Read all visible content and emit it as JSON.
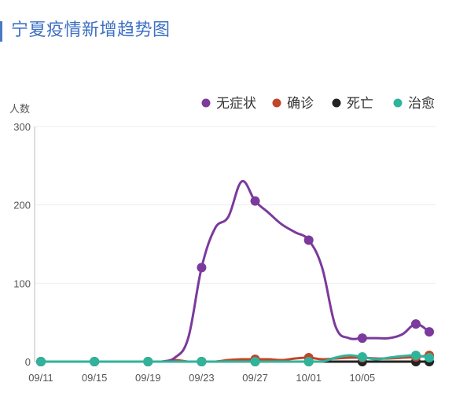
{
  "header": {
    "title": "宁夏疫情新增趋势图"
  },
  "chart_data": {
    "type": "line",
    "title": "宁夏疫情新增趋势图",
    "ylabel": "人数",
    "xlabel": "",
    "ylim": [
      0,
      300
    ],
    "yticks": [
      0,
      100,
      200,
      300
    ],
    "xticks": [
      "09/11",
      "09/15",
      "09/19",
      "09/23",
      "09/27",
      "10/01",
      "10/05"
    ],
    "x_dates": [
      "09/11",
      "09/12",
      "09/13",
      "09/14",
      "09/15",
      "09/16",
      "09/17",
      "09/18",
      "09/19",
      "09/20",
      "09/21",
      "09/22",
      "09/23",
      "09/24",
      "09/25",
      "09/26",
      "09/27",
      "09/28",
      "09/29",
      "09/30",
      "10/01",
      "10/02",
      "10/03",
      "10/04",
      "10/05",
      "10/06",
      "10/07",
      "10/08",
      "10/09",
      "10/10"
    ],
    "grid": true,
    "legend_placement": "top-right",
    "series": [
      {
        "name": "无症状",
        "color": "#7b3a9c",
        "values": [
          0,
          0,
          0,
          0,
          0,
          0,
          0,
          0,
          0,
          0,
          5,
          30,
          120,
          170,
          185,
          230,
          205,
          190,
          175,
          165,
          155,
          120,
          45,
          30,
          30,
          30,
          30,
          35,
          48,
          38
        ]
      },
      {
        "name": "确诊",
        "color": "#c0452a",
        "values": [
          0,
          0,
          0,
          0,
          0,
          0,
          0,
          0,
          0,
          0,
          2,
          0,
          0,
          0,
          2,
          3,
          3,
          3,
          2,
          4,
          5,
          3,
          4,
          5,
          5,
          4,
          4,
          5,
          6,
          8
        ]
      },
      {
        "name": "死亡",
        "color": "#222222",
        "values": [
          0,
          0,
          0,
          0,
          0,
          0,
          0,
          0,
          0,
          0,
          0,
          0,
          0,
          0,
          0,
          0,
          0,
          0,
          0,
          0,
          0,
          0,
          0,
          0,
          0,
          0,
          0,
          0,
          0,
          0
        ]
      },
      {
        "name": "治愈",
        "color": "#2fb39a",
        "values": [
          0,
          0,
          0,
          0,
          0,
          0,
          0,
          0,
          0,
          0,
          0,
          0,
          0,
          0,
          0,
          0,
          0,
          0,
          0,
          0,
          0,
          0,
          5,
          8,
          6,
          3,
          5,
          7,
          8,
          5
        ]
      }
    ],
    "markers": {
      "无症状": [
        "09/11",
        "09/15",
        "09/19",
        "09/23",
        "09/27",
        "10/01",
        "10/05",
        "10/09",
        "10/10"
      ],
      "确诊": [
        "09/11",
        "09/15",
        "09/19",
        "09/23",
        "09/27",
        "10/01",
        "10/05",
        "10/09",
        "10/10"
      ],
      "死亡": [
        "09/11",
        "09/15",
        "09/19",
        "09/23",
        "09/27",
        "10/01",
        "10/05",
        "10/09",
        "10/10"
      ],
      "治愈": [
        "09/11",
        "09/15",
        "09/19",
        "09/23",
        "09/27",
        "10/01",
        "10/05",
        "10/09",
        "10/10"
      ]
    }
  }
}
